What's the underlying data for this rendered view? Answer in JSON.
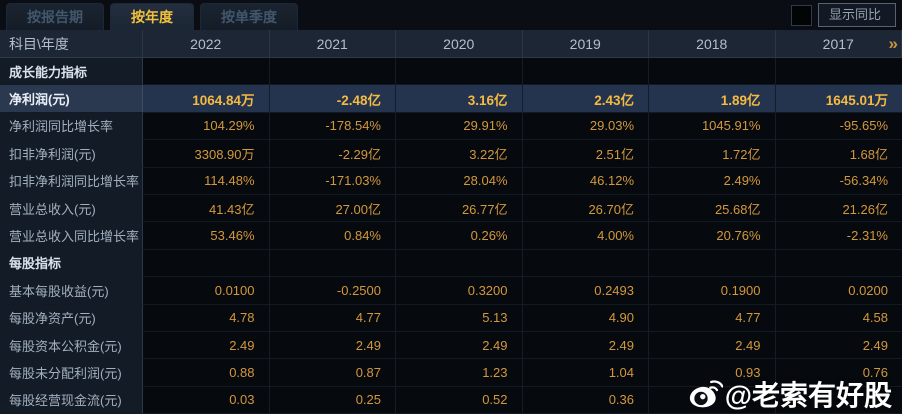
{
  "tabs": [
    {
      "label": "按报告期",
      "selected": false
    },
    {
      "label": "按年度",
      "selected": true
    },
    {
      "label": "按单季度",
      "selected": false
    }
  ],
  "controls": {
    "show_yoy_label": "显示同比",
    "checkbox_checked": false
  },
  "table": {
    "corner_label": "科目\\年度",
    "columns": [
      "2022",
      "2021",
      "2020",
      "2019",
      "2018",
      "2017"
    ],
    "more_symbol": "»",
    "rows": [
      {
        "type": "section",
        "label": "成长能力指标",
        "values": [
          "",
          "",
          "",
          "",
          "",
          ""
        ]
      },
      {
        "type": "highlight",
        "label": "净利润(元)",
        "values": [
          "1064.84万",
          "-2.48亿",
          "3.16亿",
          "2.43亿",
          "1.89亿",
          "1645.01万"
        ]
      },
      {
        "type": "data",
        "label": "净利润同比增长率",
        "values": [
          "104.29%",
          "-178.54%",
          "29.91%",
          "29.03%",
          "1045.91%",
          "-95.65%"
        ]
      },
      {
        "type": "data",
        "label": "扣非净利润(元)",
        "values": [
          "3308.90万",
          "-2.29亿",
          "3.22亿",
          "2.51亿",
          "1.72亿",
          "1.68亿"
        ]
      },
      {
        "type": "data",
        "label": "扣非净利润同比增长率",
        "values": [
          "114.48%",
          "-171.03%",
          "28.04%",
          "46.12%",
          "2.49%",
          "-56.34%"
        ]
      },
      {
        "type": "data",
        "label": "营业总收入(元)",
        "values": [
          "41.43亿",
          "27.00亿",
          "26.77亿",
          "26.70亿",
          "25.68亿",
          "21.26亿"
        ]
      },
      {
        "type": "data",
        "label": "营业总收入同比增长率",
        "values": [
          "53.46%",
          "0.84%",
          "0.26%",
          "4.00%",
          "20.76%",
          "-2.31%"
        ]
      },
      {
        "type": "section",
        "label": "每股指标",
        "values": [
          "",
          "",
          "",
          "",
          "",
          ""
        ]
      },
      {
        "type": "data",
        "label": "基本每股收益(元)",
        "values": [
          "0.0100",
          "-0.2500",
          "0.3200",
          "0.2493",
          "0.1900",
          "0.0200"
        ]
      },
      {
        "type": "data",
        "label": "每股净资产(元)",
        "values": [
          "4.78",
          "4.77",
          "5.13",
          "4.90",
          "4.77",
          "4.58"
        ]
      },
      {
        "type": "data",
        "label": "每股资本公积金(元)",
        "values": [
          "2.49",
          "2.49",
          "2.49",
          "2.49",
          "2.49",
          "2.49"
        ]
      },
      {
        "type": "data",
        "label": "每股未分配利润(元)",
        "values": [
          "0.88",
          "0.87",
          "1.23",
          "1.04",
          "0.93",
          "0.76"
        ]
      },
      {
        "type": "data",
        "label": "每股经营现金流(元)",
        "values": [
          "0.03",
          "0.25",
          "0.52",
          "0.36",
          "",
          ""
        ]
      }
    ]
  },
  "watermark": {
    "handle": "@老索有好股",
    "icon": "weibo-icon"
  },
  "colors": {
    "background": "#0b0f15",
    "accent_gold": "#d3973c",
    "highlight_value_gold": "#f4ba41",
    "selected_tab_text": "#f2c13d",
    "highlight_row_bg": "#24344e",
    "header_bg": "#1c2634",
    "label_col_bg": "#131b26"
  }
}
